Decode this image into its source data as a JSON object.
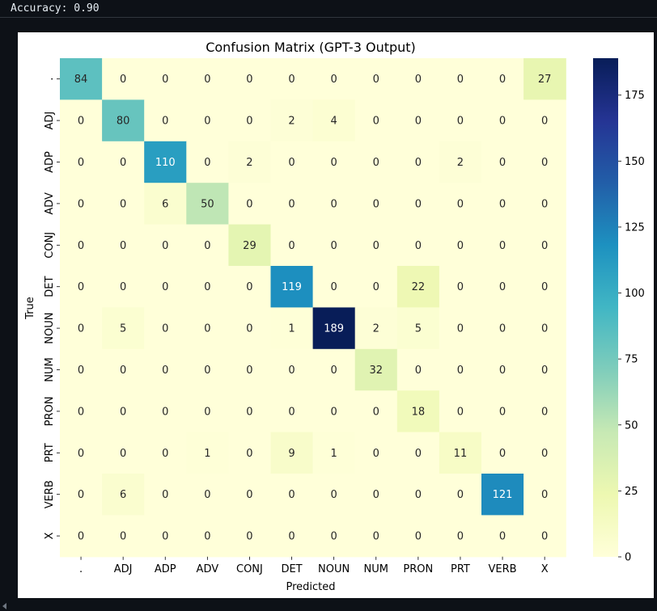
{
  "output": {
    "text": "Accuracy: 0.90"
  },
  "chart_data": {
    "type": "heatmap",
    "title": "Confusion Matrix (GPT-3 Output)",
    "xlabel": "Predicted",
    "ylabel": "True",
    "x_categories": [
      ".",
      "ADJ",
      "ADP",
      "ADV",
      "CONJ",
      "DET",
      "NOUN",
      "NUM",
      "PRON",
      "PRT",
      "VERB",
      "X"
    ],
    "y_categories": [
      ".",
      "ADJ",
      "ADP",
      "ADV",
      "CONJ",
      "DET",
      "NOUN",
      "NUM",
      "PRON",
      "PRT",
      "VERB",
      "X"
    ],
    "values": [
      [
        84,
        0,
        0,
        0,
        0,
        0,
        0,
        0,
        0,
        0,
        0,
        27
      ],
      [
        0,
        80,
        0,
        0,
        0,
        2,
        4,
        0,
        0,
        0,
        0,
        0
      ],
      [
        0,
        0,
        110,
        0,
        2,
        0,
        0,
        0,
        0,
        2,
        0,
        0
      ],
      [
        0,
        0,
        6,
        50,
        0,
        0,
        0,
        0,
        0,
        0,
        0,
        0
      ],
      [
        0,
        0,
        0,
        0,
        29,
        0,
        0,
        0,
        0,
        0,
        0,
        0
      ],
      [
        0,
        0,
        0,
        0,
        0,
        119,
        0,
        0,
        22,
        0,
        0,
        0
      ],
      [
        0,
        5,
        0,
        0,
        0,
        1,
        189,
        2,
        5,
        0,
        0,
        0
      ],
      [
        0,
        0,
        0,
        0,
        0,
        0,
        0,
        32,
        0,
        0,
        0,
        0
      ],
      [
        0,
        0,
        0,
        0,
        0,
        0,
        0,
        0,
        18,
        0,
        0,
        0
      ],
      [
        0,
        0,
        0,
        1,
        0,
        9,
        1,
        0,
        0,
        11,
        0,
        0
      ],
      [
        0,
        6,
        0,
        0,
        0,
        0,
        0,
        0,
        0,
        0,
        121,
        0
      ],
      [
        0,
        0,
        0,
        0,
        0,
        0,
        0,
        0,
        0,
        0,
        0,
        0
      ]
    ],
    "colormap": "YlGnBu",
    "vmin": 0,
    "vmax": 189,
    "colorbar_ticks": [
      0,
      25,
      50,
      75,
      100,
      125,
      150,
      175
    ],
    "annotations": true,
    "grid": false
  }
}
